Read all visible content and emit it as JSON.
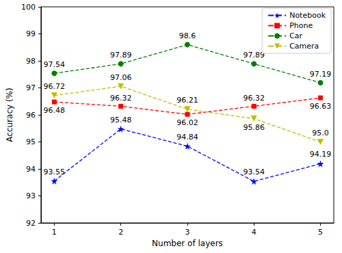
{
  "chart_data": {
    "type": "line",
    "x_label": "Number of layers",
    "y_label": "Accuracy (%)",
    "x": [
      1,
      2,
      3,
      4,
      5
    ],
    "xlim": [
      0.8,
      5.2
    ],
    "xticks": [
      1,
      2,
      3,
      4,
      5
    ],
    "ylim": [
      92,
      100
    ],
    "yticks": [
      92,
      93,
      94,
      95,
      96,
      97,
      98,
      99,
      100
    ],
    "grid": false,
    "legend": "upper right",
    "data_labels": true,
    "line_style": "dashed",
    "series": [
      {
        "name": "Notebook",
        "color": "#0000ff",
        "marker": "star",
        "values": [
          93.55,
          95.48,
          94.84,
          93.54,
          94.19
        ]
      },
      {
        "name": "Phone",
        "color": "#ff0000",
        "marker": "square",
        "values": [
          96.48,
          96.32,
          96.02,
          96.32,
          96.63
        ]
      },
      {
        "name": "Car",
        "color": "#008000",
        "marker": "circle",
        "values": [
          97.54,
          97.89,
          98.6,
          97.89,
          97.19
        ]
      },
      {
        "name": "Camera",
        "color": "#bfbf00",
        "marker": "triangle-down",
        "values": [
          96.72,
          97.06,
          96.21,
          95.86,
          95.0
        ],
        "value_labels": [
          "96.72",
          "97.06",
          "96.21",
          "95.86",
          "95.0"
        ]
      }
    ]
  }
}
